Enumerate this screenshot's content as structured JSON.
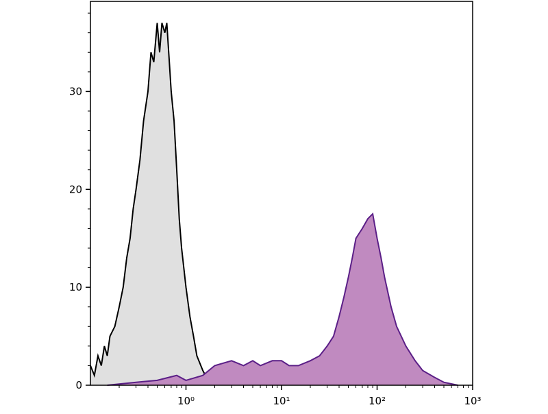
{
  "chart_data": {
    "type": "histogram-overlay",
    "xscale": "log",
    "xlim": [
      0.1,
      1000
    ],
    "ylim": [
      0,
      39.2
    ],
    "xticks": [
      {
        "value": 1,
        "label": "10⁰"
      },
      {
        "value": 10,
        "label": "10¹"
      },
      {
        "value": 100,
        "label": "10²"
      },
      {
        "value": 1000,
        "label": "10³"
      }
    ],
    "yticks": [
      0,
      10,
      20,
      30
    ],
    "xminor_ticks": [
      0.2,
      0.3,
      0.4,
      0.5,
      0.6,
      0.7,
      0.8,
      0.9,
      2,
      3,
      4,
      5,
      6,
      7,
      8,
      9,
      20,
      30,
      40,
      50,
      60,
      70,
      80,
      90,
      200,
      300,
      400,
      500,
      600,
      700,
      800,
      900
    ],
    "yminor_ticks": [
      2,
      4,
      6,
      8,
      12,
      14,
      16,
      18,
      22,
      24,
      26,
      28,
      32,
      34,
      36,
      38
    ],
    "series": [
      {
        "color": "#000000",
        "fill": "#e0e0e0",
        "x": [
          0.1,
          0.11,
          0.12,
          0.13,
          0.14,
          0.15,
          0.16,
          0.18,
          0.2,
          0.22,
          0.24,
          0.26,
          0.28,
          0.3,
          0.33,
          0.36,
          0.4,
          0.43,
          0.46,
          0.5,
          0.53,
          0.56,
          0.6,
          0.63,
          0.67,
          0.7,
          0.75,
          0.8,
          0.85,
          0.9,
          1.0,
          1.1,
          1.2,
          1.3,
          1.5,
          1.7,
          2
        ],
        "values": [
          2,
          1,
          3,
          2,
          4,
          3,
          5,
          6,
          8,
          10,
          13,
          15,
          18,
          20,
          23,
          27,
          30,
          34,
          33,
          37,
          34,
          37,
          36,
          37,
          33,
          30,
          27,
          22,
          17,
          14,
          10,
          7,
          5,
          3,
          1.5,
          0.5,
          0
        ]
      },
      {
        "color": "#5b1f87",
        "fill": "#c08ac0",
        "x": [
          0.15,
          0.3,
          0.5,
          0.8,
          1,
          1.5,
          2,
          3,
          4,
          5,
          6,
          8,
          10,
          12,
          15,
          20,
          25,
          30,
          35,
          40,
          45,
          50,
          55,
          60,
          70,
          80,
          90,
          100,
          110,
          120,
          140,
          160,
          200,
          250,
          300,
          400,
          500,
          700
        ],
        "values": [
          0,
          0.3,
          0.5,
          1,
          0.5,
          1,
          2,
          2.5,
          2,
          2.5,
          2,
          2.5,
          2.5,
          2,
          2,
          2.5,
          3,
          4,
          5,
          7,
          9,
          11,
          13,
          15,
          16,
          17,
          17.5,
          15,
          13,
          11,
          8,
          6,
          4,
          2.5,
          1.5,
          0.8,
          0.3,
          0
        ]
      }
    ]
  }
}
